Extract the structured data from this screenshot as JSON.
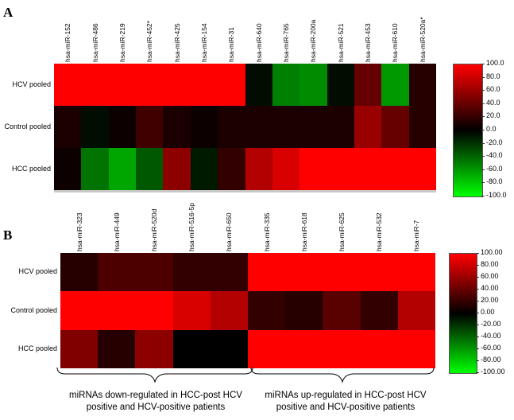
{
  "chart_data": [
    {
      "type": "heatmap",
      "panel_label": "A",
      "columns": [
        "hsa-miR-152",
        "hsa-miR-486",
        "hsa-miR-219",
        "hsa-miR-452*",
        "hsa-miR-425",
        "hsa-miR-154",
        "hsa-miR-31",
        "hsa-miR-640",
        "hsa-miR-765",
        "hsa-miR-200a",
        "hsa-miR-521",
        "hsa-miR-453",
        "hsa-miR-610",
        "hsa-miR-520a*"
      ],
      "rows": [
        "HCV pooled",
        "Control pooled",
        "HCC pooled"
      ],
      "values": [
        [
          100,
          100,
          100,
          100,
          100,
          100,
          100,
          -5,
          -50,
          -55,
          -5,
          40,
          -60,
          15
        ],
        [
          10,
          -5,
          5,
          25,
          10,
          5,
          10,
          10,
          10,
          10,
          10,
          60,
          40,
          15
        ],
        [
          5,
          -45,
          -65,
          -35,
          55,
          -10,
          20,
          70,
          85,
          100,
          100,
          100,
          100,
          100
        ]
      ],
      "scale": {
        "min": -100,
        "max": 100,
        "ticks": [
          "100.0",
          "80.0",
          "60.0",
          "40.0",
          "20.0",
          "0.0",
          "-20.0",
          "-40.0",
          "-60.0",
          "-80.0",
          "-100.0"
        ]
      }
    },
    {
      "type": "heatmap",
      "panel_label": "B",
      "columns": [
        "hsa-miR-323",
        "hsa-miR-449",
        "hsa-miR-520d",
        "hsa-miR-516-5p",
        "hsa-miR-650",
        "hsa-miR-335",
        "hsa-miR-618",
        "hsa-miR-625",
        "hsa-miR-532",
        "hsa-miR-7"
      ],
      "rows": [
        "HCV pooled",
        "Control pooled",
        "HCC pooled"
      ],
      "values": [
        [
          15,
          30,
          30,
          20,
          20,
          100,
          100,
          100,
          100,
          100
        ],
        [
          100,
          100,
          100,
          85,
          70,
          20,
          15,
          35,
          20,
          70
        ],
        [
          50,
          15,
          55,
          0,
          0,
          100,
          100,
          100,
          100,
          100
        ]
      ],
      "scale": {
        "min": -100,
        "max": 100,
        "ticks": [
          "100.00",
          "80.00",
          "60.00",
          "40.00",
          "20.00",
          "0.00",
          "-20.00",
          "-40.00",
          "-60.00",
          "-80.00",
          "-100.00"
        ]
      },
      "group_labels": [
        "miRNAs down-regulated in HCC-post HCV positive and HCV-positive patients",
        "miRNAs up-regulated in HCC-post HCV positive and HCV-positive patients"
      ]
    }
  ]
}
